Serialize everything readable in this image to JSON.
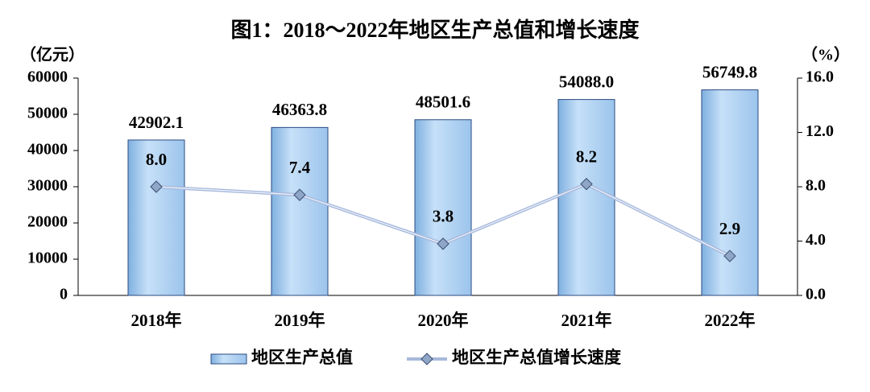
{
  "chart_data": {
    "type": "bar",
    "title": "图1：2018～2022年地区生产总值和增长速度",
    "y_label": "（亿元）",
    "y2_label": "（%）",
    "categories": [
      "2018年",
      "2019年",
      "2020年",
      "2021年",
      "2022年"
    ],
    "series": [
      {
        "name": "地区生产总值",
        "type": "bar",
        "color": "#a9cdf2",
        "values": [
          42902.1,
          46363.8,
          48501.6,
          54088,
          56749.8
        ],
        "value_labels": [
          "42902.1",
          "46363.8",
          "48501.6",
          "54088.0",
          "56749.8"
        ]
      },
      {
        "name": "地区生产总值增长速度",
        "type": "line",
        "axis": "y2",
        "color": "#a7b9dc",
        "values": [
          8,
          7.4,
          3.8,
          8.2,
          2.9
        ],
        "value_labels": [
          "8.0",
          "7.4",
          "3.8",
          "8.2",
          "2.9"
        ]
      }
    ],
    "ylim": [
      0,
      60000
    ],
    "yticks": [
      0,
      10000,
      20000,
      30000,
      40000,
      50000,
      60000
    ],
    "y2lim": [
      0,
      16
    ],
    "y2ticks": [
      {
        "value": 0,
        "label": "0.0"
      },
      {
        "value": 4,
        "label": "4.0"
      },
      {
        "value": 8,
        "label": "8.0"
      },
      {
        "value": 12,
        "label": "12.0"
      },
      {
        "value": 16,
        "label": "16.0"
      }
    ],
    "legend": "bottom"
  }
}
